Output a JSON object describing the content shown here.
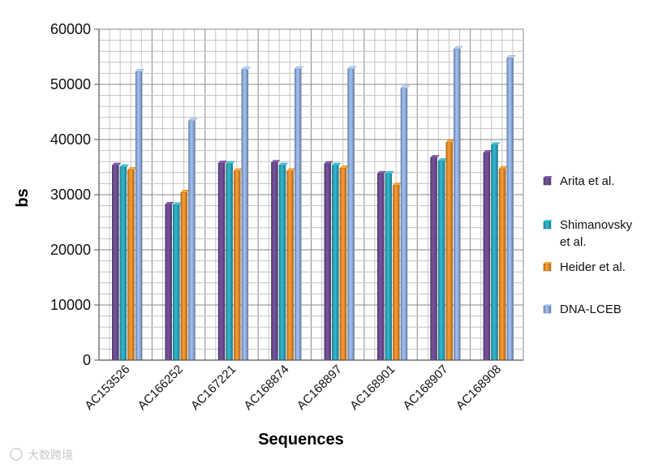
{
  "chart_data": {
    "type": "bar",
    "title": "",
    "xlabel": "Sequences",
    "ylabel": "bs",
    "ylim": [
      0,
      60000
    ],
    "yticks": [
      0,
      10000,
      20000,
      30000,
      40000,
      50000,
      60000
    ],
    "ytick_labels": [
      "0",
      "10000",
      "20000",
      "30000",
      "40000",
      "50000",
      "60000"
    ],
    "grid": true,
    "legend_position": "right",
    "categories": [
      "AC153526",
      "AC166252",
      "AC167221",
      "AC168874",
      "AC168897",
      "AC168901",
      "AC168907",
      "AC168908"
    ],
    "series": [
      {
        "name": "Arita et al.",
        "color": "#6a4a8e",
        "values": [
          35300,
          28200,
          35700,
          35800,
          35600,
          33800,
          36700,
          37600
        ]
      },
      {
        "name": "Shimanovsky et al.",
        "color": "#2ba3b8",
        "values": [
          35000,
          28100,
          35600,
          35300,
          35300,
          33800,
          36100,
          39000
        ]
      },
      {
        "name": "Heider et al.",
        "color": "#e6892a",
        "values": [
          34500,
          30400,
          34300,
          34300,
          34800,
          31700,
          39500,
          34700
        ]
      },
      {
        "name": "DNA-LCEB",
        "color": "#8eaad8",
        "values": [
          52300,
          43400,
          52700,
          52800,
          52800,
          49300,
          56400,
          54800
        ]
      }
    ],
    "legend_lines": [
      [
        "Arita et al."
      ],
      [
        "Shimanovsky",
        " et al."
      ],
      [
        "Heider et al."
      ],
      [
        "DNA-LCEB"
      ]
    ],
    "watermark": "大数跨境"
  }
}
